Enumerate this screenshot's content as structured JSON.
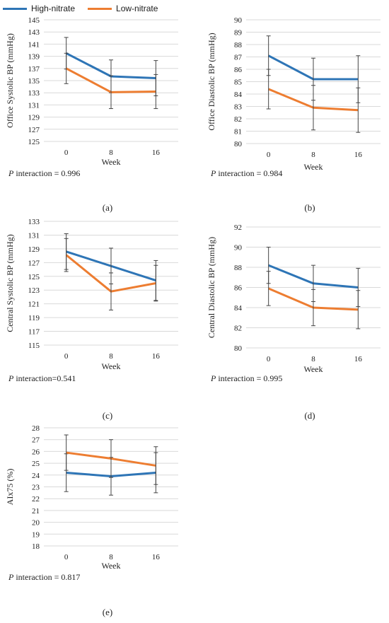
{
  "legend": [
    {
      "name": "High-nitrate",
      "color": "#2E75B6"
    },
    {
      "name": "Low-nitrate",
      "color": "#ED7D31"
    }
  ],
  "chart_data": [
    {
      "type": "line",
      "id": "a",
      "caption": "(a)",
      "xlabel": "Week",
      "ylabel": "Office Systolic BP (mmHg)",
      "x": [
        "0",
        "8",
        "16"
      ],
      "ylim": [
        125,
        145
      ],
      "yticks": [
        125,
        127,
        129,
        131,
        133,
        135,
        137,
        139,
        141,
        143,
        145
      ],
      "p_interaction": {
        "prefix": "P",
        "text": " interaction = 0.996"
      },
      "grid": true,
      "series": [
        {
          "name": "High-nitrate",
          "color": "#2E75B6",
          "values": [
            139.5,
            135.7,
            135.4
          ],
          "errors": [
            2.6,
            2.7,
            2.9
          ]
        },
        {
          "name": "Low-nitrate",
          "color": "#ED7D31",
          "values": [
            137.0,
            133.1,
            133.2
          ],
          "errors": [
            2.5,
            2.7,
            2.8
          ]
        }
      ]
    },
    {
      "type": "line",
      "id": "b",
      "caption": "(b)",
      "xlabel": "Week",
      "ylabel": "Office Diastolic BP (mmHg)",
      "x": [
        "0",
        "8",
        "16"
      ],
      "ylim": [
        80,
        90
      ],
      "yticks": [
        80,
        81,
        82,
        83,
        84,
        85,
        86,
        87,
        88,
        89,
        90
      ],
      "p_interaction": {
        "prefix": "P",
        "text": " interaction = 0.984"
      },
      "grid": true,
      "series": [
        {
          "name": "High-nitrate",
          "color": "#2E75B6",
          "values": [
            87.1,
            85.2,
            85.2
          ],
          "errors": [
            1.6,
            1.7,
            1.9
          ]
        },
        {
          "name": "Low-nitrate",
          "color": "#ED7D31",
          "values": [
            84.4,
            82.9,
            82.7
          ],
          "errors": [
            1.6,
            1.8,
            1.8
          ]
        }
      ]
    },
    {
      "type": "line",
      "id": "c",
      "caption": "(c)",
      "xlabel": "Week",
      "ylabel": "Central Systolic BP (mmHg)",
      "x": [
        "0",
        "8",
        "16"
      ],
      "ylim": [
        115,
        133
      ],
      "yticks": [
        115,
        117,
        119,
        121,
        123,
        125,
        127,
        129,
        131,
        133
      ],
      "p_interaction": {
        "prefix": "P",
        "text": " interaction=0.541"
      },
      "grid": true,
      "series": [
        {
          "name": "High-nitrate",
          "color": "#2E75B6",
          "values": [
            128.6,
            126.5,
            124.4
          ],
          "errors": [
            2.6,
            2.6,
            2.9
          ]
        },
        {
          "name": "Low-nitrate",
          "color": "#ED7D31",
          "values": [
            128.1,
            122.8,
            124.0
          ],
          "errors": [
            2.4,
            2.7,
            2.6
          ]
        }
      ]
    },
    {
      "type": "line",
      "id": "d",
      "caption": "(d)",
      "xlabel": "Week",
      "ylabel": "Central Diastolic BP (mmHg)",
      "x": [
        "0",
        "8",
        "16"
      ],
      "ylim": [
        80,
        92
      ],
      "yticks": [
        80,
        82,
        84,
        86,
        88,
        90,
        92
      ],
      "p_interaction": {
        "prefix": "P",
        "text": " interaction = 0.995"
      },
      "grid": true,
      "series": [
        {
          "name": "High-nitrate",
          "color": "#2E75B6",
          "values": [
            88.2,
            86.4,
            86.0
          ],
          "errors": [
            1.8,
            1.8,
            1.9
          ]
        },
        {
          "name": "Low-nitrate",
          "color": "#ED7D31",
          "values": [
            85.9,
            84.0,
            83.8
          ],
          "errors": [
            1.7,
            1.8,
            1.9
          ]
        }
      ]
    },
    {
      "type": "line",
      "id": "e",
      "caption": "(e)",
      "xlabel": "Week",
      "ylabel": "AIx75 (%)",
      "x": [
        "0",
        "8",
        "16"
      ],
      "ylim": [
        18,
        28
      ],
      "yticks": [
        18,
        19,
        20,
        21,
        22,
        23,
        24,
        25,
        26,
        27,
        28
      ],
      "p_interaction": {
        "prefix": "P",
        "text": " interaction = 0.817"
      },
      "grid": true,
      "series": [
        {
          "name": "High-nitrate",
          "color": "#2E75B6",
          "values": [
            24.2,
            23.9,
            24.2
          ],
          "errors": [
            1.6,
            1.6,
            1.7
          ]
        },
        {
          "name": "Low-nitrate",
          "color": "#ED7D31",
          "values": [
            25.9,
            25.4,
            24.8
          ],
          "errors": [
            1.5,
            1.6,
            1.6
          ]
        }
      ]
    }
  ]
}
